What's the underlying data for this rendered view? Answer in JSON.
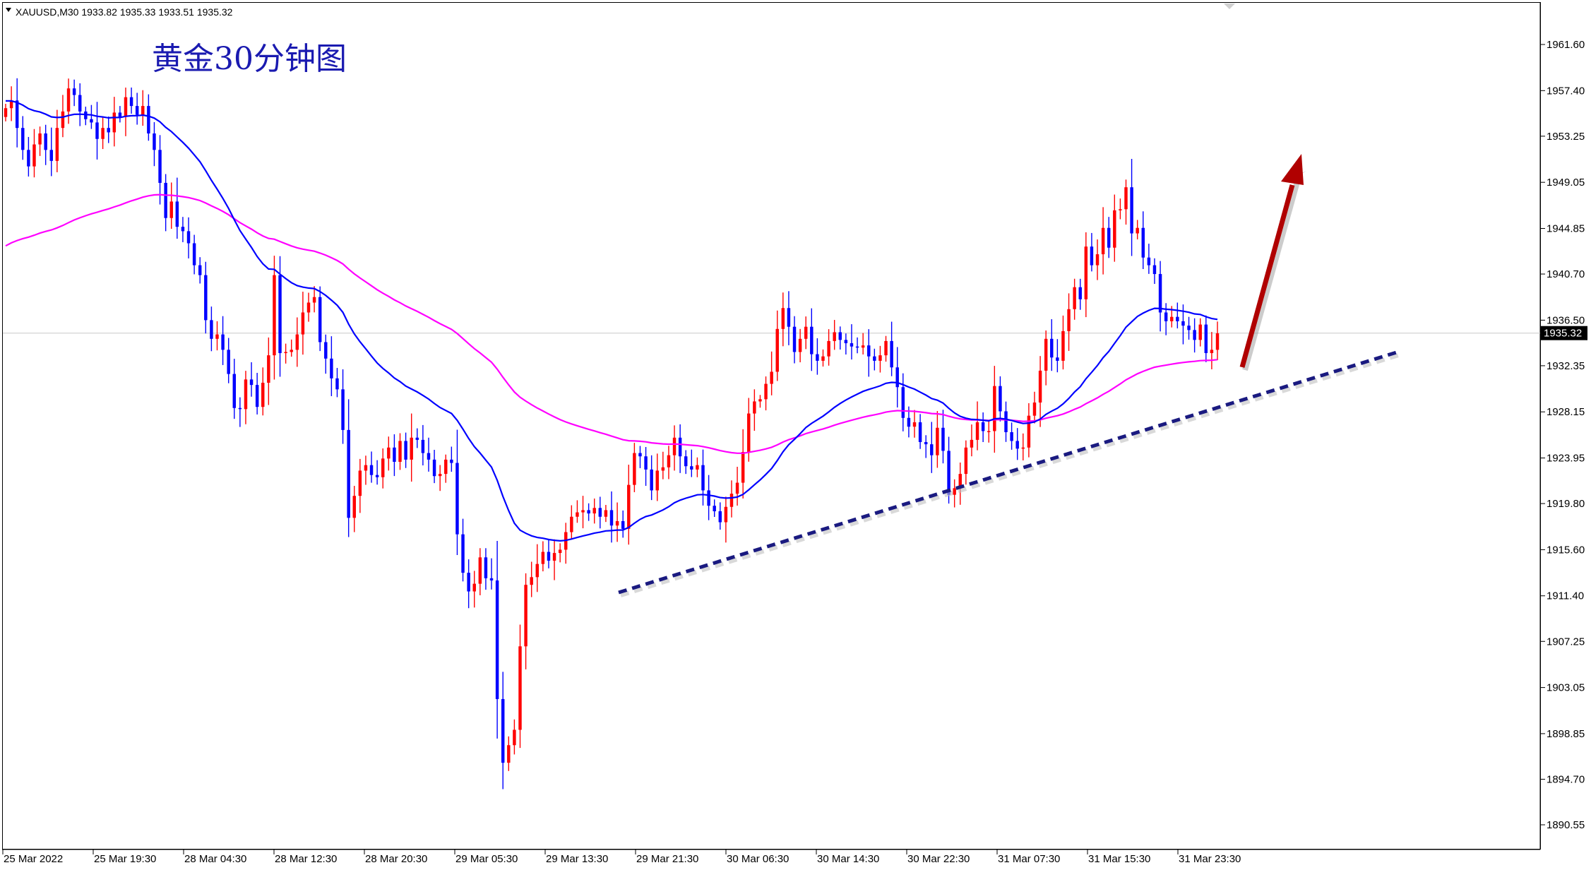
{
  "header": {
    "symbol_line": "XAUUSD,M30  1933.82 1935.33 1933.51 1935.32"
  },
  "overlay_title": "黄金30分钟图",
  "colors": {
    "bull": "#ff0000",
    "bear": "#0000ff",
    "ma_fast": "#0000ff",
    "ma_slow": "#ff00ff",
    "trendline": "#1a1a80",
    "arrow": "#b00000",
    "grid_line": "#c8c8c8",
    "current_tag_bg": "#000000"
  },
  "chart_data": {
    "type": "candlestick",
    "title": "黄金30分钟图",
    "symbol": "XAUUSD",
    "timeframe": "M30",
    "ohlc_last": {
      "open": 1933.82,
      "high": 1935.33,
      "low": 1933.51,
      "close": 1935.32
    },
    "current_price": 1935.32,
    "current_price_label": "1935.32",
    "y_ticks": [
      "1961.60",
      "1957.40",
      "1953.25",
      "1949.05",
      "1944.85",
      "1940.70",
      "1936.50",
      "1932.35",
      "1928.15",
      "1923.95",
      "1919.80",
      "1915.60",
      "1911.40",
      "1907.25",
      "1903.05",
      "1898.85",
      "1894.70",
      "1890.55"
    ],
    "x_ticks": [
      "25 Mar 2022",
      "25 Mar 19:30",
      "28 Mar 04:30",
      "28 Mar 12:30",
      "28 Mar 20:30",
      "29 Mar 05:30",
      "29 Mar 13:30",
      "29 Mar 21:30",
      "30 Mar 06:30",
      "30 Mar 14:30",
      "30 Mar 22:30",
      "31 Mar 07:30",
      "31 Mar 15:30",
      "31 Mar 23:30"
    ],
    "ylim": [
      1889.3,
      1964.0
    ],
    "closes": [
      1955.8,
      1956.5,
      1954,
      1952,
      1950.5,
      1952.5,
      1953.5,
      1952,
      1951,
      1954,
      1955.5,
      1957.6,
      1957,
      1955.5,
      1954.8,
      1954.5,
      1953,
      1954,
      1953.6,
      1955.4,
      1955,
      1956.8,
      1956,
      1955.2,
      1956,
      1953.5,
      1952,
      1949,
      1945.8,
      1947.3,
      1945,
      1944.6,
      1943.5,
      1941.5,
      1940.6,
      1936.5,
      1934.8,
      1935.2,
      1933.8,
      1931.6,
      1928.5,
      1928.4,
      1931.1,
      1930.6,
      1928.6,
      1930.8,
      1933.3,
      1940.6,
      1933.5,
      1933.6,
      1933.8,
      1935.2,
      1937.2,
      1938.1,
      1938.6,
      1934.5,
      1933,
      1931.2,
      1930.2,
      1926.5,
      1918.5,
      1920.5,
      1922.8,
      1923.3,
      1922.4,
      1922.2,
      1923.9,
      1924.9,
      1923.6,
      1925.5,
      1923.8,
      1925.8,
      1925.6,
      1924.4,
      1923.8,
      1922.3,
      1922.5,
      1923.8,
      1923.5,
      1917,
      1913.5,
      1911.8,
      1912.5,
      1914.9,
      1913,
      1912.8,
      1902,
      1896.2,
      1897.8,
      1899.2,
      1906.8,
      1912.4,
      1913.1,
      1914.3,
      1915.4,
      1914.6,
      1915.3,
      1915.6,
      1917.2,
      1918.6,
      1919,
      1919.2,
      1918.9,
      1919.4,
      1918.6,
      1919.2,
      1917.8,
      1918.2,
      1917.5,
      1921.5,
      1924.4,
      1924.1,
      1922.9,
      1921,
      1922.8,
      1923.1,
      1924.2,
      1925.8,
      1924.1,
      1923.2,
      1922.9,
      1923.3,
      1921,
      1919.6,
      1919.1,
      1918.1,
      1919.5,
      1920.7,
      1921.7,
      1924.5,
      1928,
      1929.1,
      1929.3,
      1930.7,
      1931.8,
      1935.7,
      1937.6,
      1935.9,
      1933.6,
      1934.8,
      1935.9,
      1933.4,
      1932.8,
      1933.2,
      1934.6,
      1935.4,
      1934.7,
      1934.4,
      1934.1,
      1934,
      1934.2,
      1933.2,
      1932.8,
      1933.3,
      1934.6,
      1932.2,
      1930.4,
      1927.6,
      1926.8,
      1927.2,
      1925.4,
      1925.2,
      1924.2,
      1926.7,
      1924.6,
      1920.6,
      1921.2,
      1922.5,
      1924.9,
      1925.6,
      1927.2,
      1926.4,
      1926.4,
      1930.5,
      1928.2,
      1926.3,
      1925.5,
      1924.8,
      1924.9,
      1927.8,
      1929,
      1931.9,
      1934.8,
      1933.1,
      1932.8,
      1935.5,
      1937.5,
      1939.5,
      1938.4,
      1943.2,
      1941.5,
      1942.5,
      1944.9,
      1943.1,
      1946.5,
      1946.6,
      1948.6,
      1944.4,
      1944.9,
      1942.2,
      1941.5,
      1940.7,
      1937.2,
      1936.4,
      1936.8,
      1936.4,
      1936,
      1935.6,
      1934.7,
      1936.1,
      1933.5,
      1933.8,
      1935.3
    ],
    "series": [
      {
        "name": "",
        "style": "moving-average"
      },
      {
        "name": "",
        "style": "moving-average"
      }
    ]
  }
}
